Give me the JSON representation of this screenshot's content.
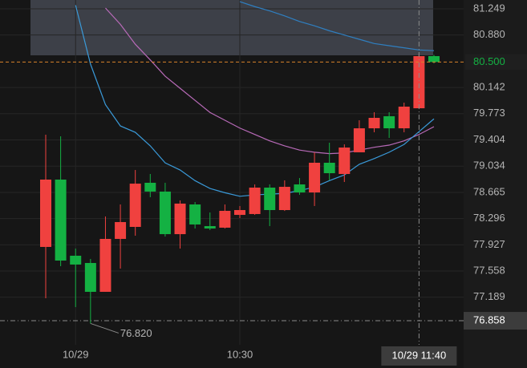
{
  "chart_data": {
    "type": "candlestick",
    "categories": [
      null,
      null,
      "10/29",
      null,
      null,
      null,
      null,
      null,
      null,
      null,
      null,
      null,
      null,
      "10:30",
      null,
      null,
      null,
      null,
      null,
      null,
      null,
      null,
      null,
      null,
      null,
      "10/29 11:40",
      null
    ],
    "open": [
      77.897,
      78.845,
      77.773,
      77.671,
      77.265,
      78.01,
      78.179,
      78.8,
      78.676,
      78.077,
      78.495,
      78.19,
      78.168,
      78.348,
      78.36,
      78.732,
      78.416,
      78.777,
      78.664,
      79.082,
      78.924,
      79.229,
      79.567,
      79.737,
      79.567,
      79.849,
      80.583
    ],
    "high": [
      79.477,
      79.455,
      77.874,
      77.728,
      78.326,
      78.495,
      78.98,
      78.924,
      78.8,
      78.552,
      78.529,
      78.382,
      78.495,
      78.473,
      78.777,
      78.777,
      78.834,
      78.867,
      79.229,
      79.364,
      79.341,
      79.68,
      79.793,
      79.793,
      79.928,
      80.617,
      80.6
    ],
    "low": [
      77.175,
      77.626,
      77.05,
      76.82,
      77.265,
      77.592,
      78.055,
      78.597,
      78.043,
      77.874,
      78.156,
      78.134,
      78.156,
      78.303,
      78.348,
      78.19,
      78.404,
      78.63,
      78.473,
      78.834,
      78.811,
      79.229,
      79.511,
      79.432,
      79.511,
      79.849,
      80.48
    ],
    "close": [
      78.845,
      77.705,
      77.649,
      77.265,
      78.01,
      78.247,
      78.788,
      78.676,
      78.077,
      78.507,
      78.213,
      78.156,
      78.405,
      78.416,
      78.732,
      78.416,
      78.743,
      78.664,
      79.082,
      78.935,
      79.296,
      79.567,
      79.714,
      79.567,
      79.872,
      80.583,
      80.5
    ],
    "up_color": "#f0413f",
    "down_color": "#14b143",
    "ylim": [
      76.52,
      81.373
    ],
    "yticks": [
      81.249,
      {
        "value": 80.88,
        "label": "80.880"
      },
      80.142,
      79.773,
      79.404,
      79.034,
      78.665,
      78.296,
      77.927,
      77.558,
      77.189
    ],
    "grid": true,
    "lines": [
      {
        "color": "#2f7fc1",
        "values": [
          null,
          null,
          null,
          null,
          null,
          null,
          null,
          null,
          null,
          null,
          null,
          null,
          null,
          81.35,
          81.28,
          81.22,
          81.15,
          81.07,
          81.01,
          80.94,
          80.88,
          80.82,
          80.76,
          80.73,
          80.7,
          80.67,
          80.66
        ]
      },
      {
        "color": "#b86ab8",
        "values": [
          null,
          null,
          null,
          null,
          81.26,
          81.03,
          80.75,
          80.53,
          80.3,
          80.13,
          79.96,
          79.79,
          79.68,
          79.57,
          79.48,
          79.39,
          79.32,
          79.26,
          79.23,
          79.21,
          79.22,
          79.26,
          79.3,
          79.33,
          79.39,
          79.48,
          79.59
        ]
      },
      {
        "color": "#3a9ad9",
        "values": [
          null,
          null,
          81.3,
          80.47,
          79.9,
          79.6,
          79.51,
          79.32,
          79.08,
          78.98,
          78.83,
          78.72,
          78.66,
          78.61,
          78.63,
          78.64,
          78.65,
          78.69,
          78.74,
          78.83,
          78.91,
          79.06,
          79.14,
          79.23,
          79.34,
          79.52,
          79.7
        ]
      }
    ],
    "last_price": {
      "value": 80.5,
      "label": "80.500"
    },
    "last_price_color": "#d9822b",
    "crosshair": {
      "x": 25,
      "y": 76.858
    },
    "low_annotation": {
      "value": 76.82,
      "label": "76.820"
    }
  }
}
